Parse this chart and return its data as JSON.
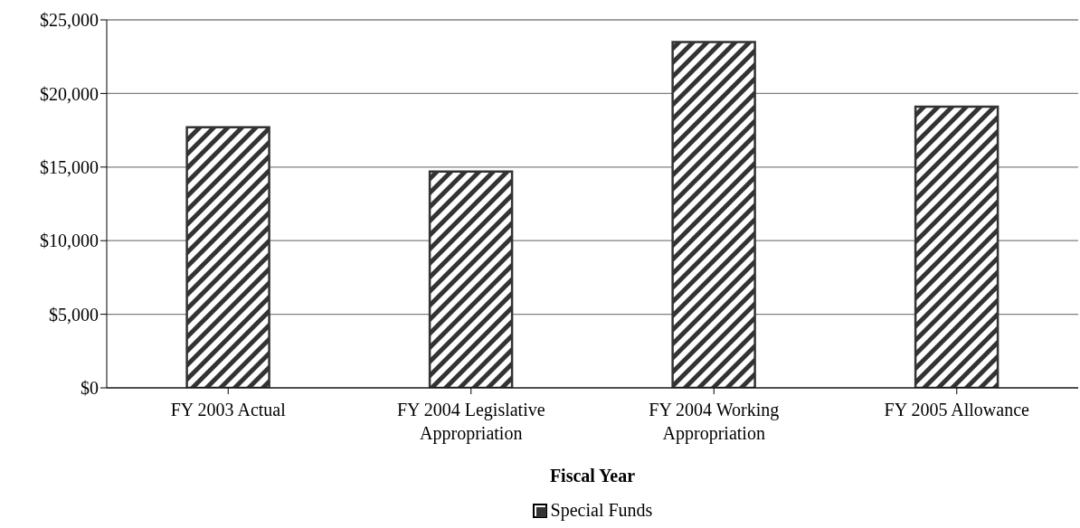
{
  "chart_data": {
    "type": "bar",
    "xlabel": "Fiscal Year",
    "categories": [
      "FY 2003 Actual",
      "FY 2004 Legislative Appropriation",
      "FY 2004 Working Appropriation",
      "FY 2005 Allowance"
    ],
    "series": [
      {
        "name": "Special Funds",
        "color": "#333333",
        "values": [
          17700,
          14700,
          23500,
          19100
        ]
      }
    ],
    "ylim": [
      0,
      25000
    ],
    "yticks": [
      {
        "value": 0,
        "label": "$0"
      },
      {
        "value": 5000,
        "label": "$5,000"
      },
      {
        "value": 10000,
        "label": "$10,000"
      },
      {
        "value": 15000,
        "label": "$15,000"
      },
      {
        "value": 20000,
        "label": "$20,000"
      },
      {
        "value": 25000,
        "label": "$25,000"
      }
    ],
    "grid": "y",
    "legend": "bottom"
  }
}
